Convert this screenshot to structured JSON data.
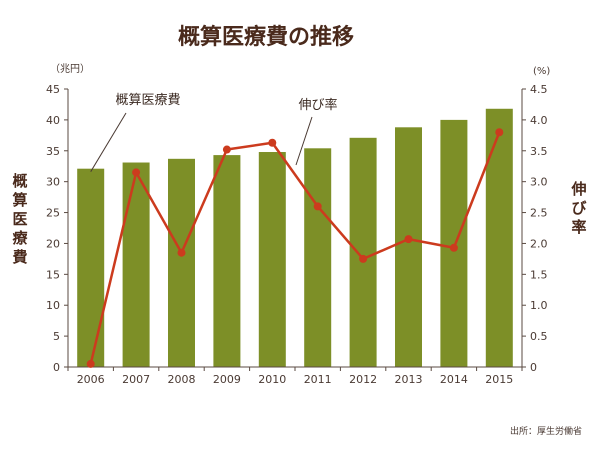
{
  "chart_data": {
    "type": "bar+line",
    "title": "概算医療費の推移",
    "categories": [
      "2006",
      "2007",
      "2008",
      "2009",
      "2010",
      "2011",
      "2012",
      "2013",
      "2014",
      "2015"
    ],
    "series": [
      {
        "name": "概算医療費",
        "type": "bar",
        "axis": "left",
        "values": [
          32.1,
          33.1,
          33.7,
          34.3,
          34.8,
          35.4,
          37.1,
          38.8,
          40.0,
          41.8
        ],
        "color": "#7d8f27"
      },
      {
        "name": "伸び率",
        "type": "line",
        "axis": "right",
        "values": [
          0.05,
          3.15,
          1.85,
          3.52,
          3.63,
          2.6,
          1.75,
          2.07,
          1.93,
          3.8
        ],
        "color": "#cc3b1e"
      }
    ],
    "left_axis": {
      "label": "概算医療費",
      "unit": "（兆円）",
      "range": [
        0,
        45
      ],
      "ticks": [
        "0",
        "5",
        "10",
        "15",
        "20",
        "25",
        "30",
        "35",
        "40",
        "45"
      ]
    },
    "right_axis": {
      "label": "伸び率",
      "unit": "(%)",
      "range": [
        0,
        4.5
      ],
      "ticks": [
        "0",
        "0.5",
        "1.0",
        "1.5",
        "2.0",
        "2.5",
        "3.0",
        "3.5",
        "4.0",
        "4.5"
      ]
    },
    "source": "出所：厚生労働省",
    "grid": false
  }
}
